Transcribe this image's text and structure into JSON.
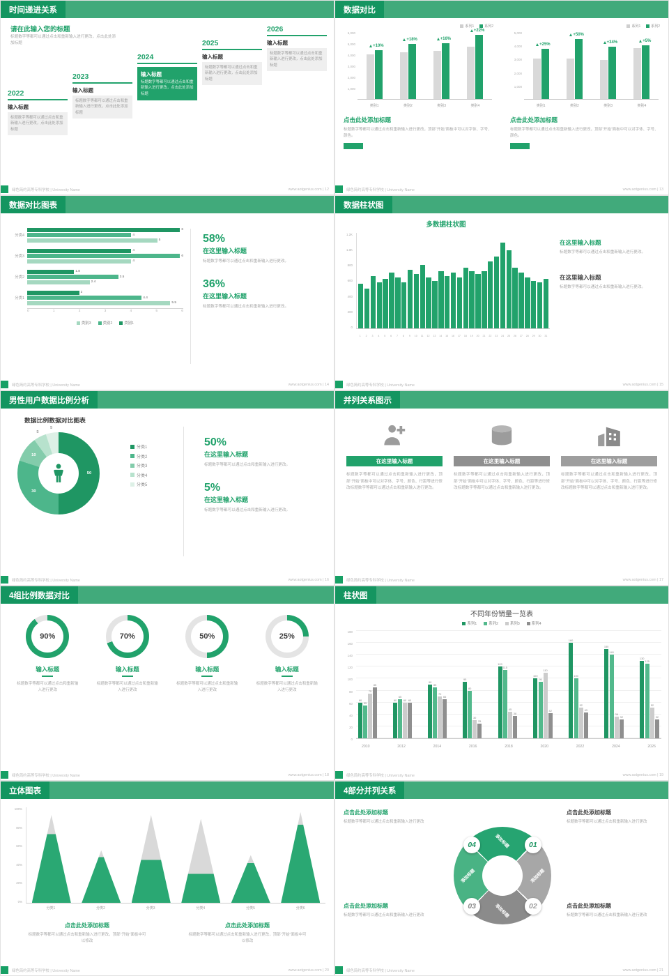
{
  "meta": {
    "accent_color": "#21a26b",
    "footer_left": "绿色简约高等专科学校 | University Name"
  },
  "slides": {
    "s12": {
      "title": "时间递进关系",
      "footer_right": "www.aotgenius.com | 12",
      "heading": "请在此输入您的标题",
      "subheading": "标题数字等都可以通过点击和重新输入进行更改，点击此处添加标题",
      "items": [
        {
          "year": "2022",
          "label": "输入标题",
          "text": "标题数字等都可以通过点击和重新输入进行更改，点击此处添加标题",
          "highlight": false
        },
        {
          "year": "2023",
          "label": "输入标题",
          "text": "标题数字等都可以通过点击和重新输入进行更改，点击此处添加标题",
          "highlight": false
        },
        {
          "year": "2024",
          "label": "输入标题",
          "text": "标题数字等都可以通过点击和重新输入进行更改，点击此处添加标题",
          "highlight": true
        },
        {
          "year": "2025",
          "label": "输入标题",
          "text": "标题数字等都可以通过点击和重新输入进行更改，点击此处添加标题",
          "highlight": false
        },
        {
          "year": "2026",
          "label": "输入标题",
          "text": "标题数字等都可以通过点击和重新输入进行更改，点击此处添加标题",
          "highlight": false
        }
      ]
    },
    "s13": {
      "title": "数据对比",
      "footer_right": "www.aotgenius.com | 13",
      "charts": [
        {
          "legend": [
            "系列1",
            "系列2"
          ],
          "yticks": [
            "6,000",
            "5,000",
            "4,000",
            "3,000",
            "2,000",
            "1,000"
          ],
          "ymax": 6000,
          "categories": [
            "类别1",
            "类别2",
            "类别3",
            "类别4"
          ],
          "base": [
            4000,
            4200,
            4300,
            4700
          ],
          "growth": [
            4400,
            4950,
            5000,
            5750
          ],
          "percents": [
            "+10%",
            "+18%",
            "+16%",
            "+22%"
          ],
          "heading": "点击此处添加标题",
          "text": "标题数字等都可以通过点击和重新输入进行更改，顶部“开始”面板中可以对字体、字号、颜色。"
        },
        {
          "legend": [
            "系列1",
            "系列2"
          ],
          "yticks": [
            "5,000",
            "4,000",
            "3,000",
            "2,000",
            "1,000"
          ],
          "ymax": 5000,
          "categories": [
            "类别1",
            "类别2",
            "类别3",
            "类别4"
          ],
          "base": [
            3000,
            3000,
            2900,
            3800
          ],
          "growth": [
            3750,
            4500,
            3900,
            4000
          ],
          "percents": [
            "+25%",
            "+50%",
            "+34%",
            "+5%"
          ],
          "heading": "点击此处添加标题",
          "text": "标题数字等都可以通过点击和重新输入进行更改，顶部“开始”面板中可以对字体、字号、颜色。"
        }
      ]
    },
    "s14": {
      "title": "数据对比图表",
      "footer_right": "www.aotgenius.com | 14",
      "chart": {
        "type": "bar-horizontal",
        "categories": [
          "分类4",
          "分类3",
          "分类2",
          "分类1"
        ],
        "series": [
          {
            "name": "类别1",
            "color": "#1f9663",
            "values": [
              6,
              4,
              1.8,
              2
            ]
          },
          {
            "name": "类别2",
            "color": "#4db68b",
            "values": [
              4,
              6,
              3.5,
              4.4
            ]
          },
          {
            "name": "类别3",
            "color": "#a5d8c0",
            "values": [
              5,
              4,
              2.4,
              5.5
            ]
          }
        ],
        "xticks": [
          "0",
          "1",
          "2",
          "3",
          "4",
          "5",
          "6"
        ],
        "xmax": 6
      },
      "stats": [
        {
          "value": "58%",
          "label": "在这里输入标题",
          "text": "标题数字等都可以通过点击和重新输入进行更改。"
        },
        {
          "value": "36%",
          "label": "在这里输入标题",
          "text": "标题数字等都可以通过点击和重新输入进行更改。"
        }
      ]
    },
    "s15": {
      "title": "数据柱状图",
      "footer_right": "www.aotgenius.com | 15",
      "chart": {
        "type": "bar",
        "title": "多数据柱状图",
        "values": [
          560,
          500,
          660,
          580,
          620,
          700,
          640,
          580,
          740,
          680,
          800,
          640,
          600,
          720,
          660,
          700,
          640,
          760,
          720,
          680,
          720,
          840,
          900,
          1080,
          980,
          760,
          700,
          640,
          600,
          580,
          620
        ],
        "labels": [
          "1",
          "2",
          "3",
          "4",
          "5",
          "6",
          "7",
          "8",
          "9",
          "10",
          "11",
          "12",
          "13",
          "14",
          "15",
          "16",
          "17",
          "18",
          "19",
          "20",
          "21",
          "22",
          "23",
          "24",
          "25",
          "26",
          "27",
          "28",
          "29",
          "30",
          "31"
        ],
        "yticks": [
          "1.2K",
          "1.0K",
          "800",
          "600",
          "400",
          "200",
          "0"
        ],
        "ymax": 1200
      },
      "blocks": [
        {
          "label": "在这里输入标题",
          "text": "标题数字等都可以通过点击和重新输入进行更改。"
        },
        {
          "label": "在这里输入标题",
          "text": "标题数字等都可以通过点击和重新输入进行更改。"
        }
      ]
    },
    "s16": {
      "title": "男性用户数据比例分析",
      "footer_right": "www.aotgenius.com | 16",
      "chart_title": "数据比例数据对比图表",
      "donut": {
        "type": "pie",
        "segments": [
          {
            "label": "分类1",
            "value": 50,
            "color": "#1f9663"
          },
          {
            "label": "分类2",
            "value": 30,
            "color": "#4db68b"
          },
          {
            "label": "分类3",
            "value": 10,
            "color": "#83ccab"
          },
          {
            "label": "分类4",
            "value": 5,
            "color": "#b7e2cd"
          },
          {
            "label": "分类5",
            "value": 5,
            "color": "#ddf0e6"
          }
        ]
      },
      "stats": [
        {
          "value": "50%",
          "label": "在这里输入标题",
          "text": "标题数字等都可以通过点击和重新输入进行更改。"
        },
        {
          "value": "5%",
          "label": "在这里输入标题",
          "text": "标题数字等都可以通过点击和重新输入进行更改。"
        }
      ]
    },
    "s17": {
      "title": "并列关系图示",
      "footer_right": "www.aotgenius.com | 17",
      "cards": [
        {
          "icon": "nurse",
          "label": "在这里输入标题",
          "style": "green",
          "text": "标题数字等都可以通过点击和重新输入进行更改，顶部“开始”面板中可以对字体、字号、颜色、行距等进行修改标题数字等都可以通过点击和重新输入进行更改。"
        },
        {
          "icon": "database",
          "label": "在这里输入标题",
          "style": "gray",
          "text": "标题数字等都可以通过点击和重新输入进行更改，顶部“开始”面板中可以对字体、字号、颜色、行距等进行修改标题数字等都可以通过点击和重新输入进行更改。"
        },
        {
          "icon": "building",
          "label": "在这里输入标题",
          "style": "gray2",
          "text": "标题数字等都可以通过点击和重新输入进行更改，顶部“开始”面板中可以对字体、字号、颜色、行距等进行修改标题数字等都可以通过点击和重新输入进行更改。"
        }
      ]
    },
    "s18": {
      "title": "4组比例数据对比",
      "footer_right": "www.aotgenius.com | 18",
      "rings": [
        {
          "percent": 90,
          "display": "90%",
          "label": "输入标题",
          "text": "标题数字等都可以通过点击和重新输入进行更改"
        },
        {
          "percent": 70,
          "display": "70%",
          "label": "输入标题",
          "text": "标题数字等都可以通过点击和重新输入进行更改"
        },
        {
          "percent": 50,
          "display": "50%",
          "label": "输入标题",
          "text": "标题数字等都可以通过点击和重新输入进行更改"
        },
        {
          "percent": 25,
          "display": "25%",
          "label": "输入标题",
          "text": "标题数字等都可以通过点击和重新输入进行更改"
        }
      ]
    },
    "s19": {
      "title": "柱状图",
      "footer_right": "www.aotgenius.com | 19",
      "chart": {
        "type": "bar",
        "title": "不同年份销量一览表",
        "categories": [
          "2010",
          "2012",
          "2014",
          "2016",
          "2018",
          "2020",
          "2022",
          "2024",
          "2026"
        ],
        "series": [
          {
            "name": "系列1",
            "color": "#1f9663",
            "values": [
              60,
              60,
              90,
              95,
              120,
              100,
              160,
              150,
              130
            ]
          },
          {
            "name": "系列2",
            "color": "#52b98c",
            "values": [
              55,
              65,
              85,
              80,
              115,
              95,
              100,
              140,
              125
            ]
          },
          {
            "name": "系列3",
            "color": "#cccccc",
            "values": [
              75,
              60,
              70,
              30,
              45,
              110,
              52,
              36,
              52
            ]
          },
          {
            "name": "系列4",
            "color": "#8f8f8f",
            "values": [
              85,
              60,
              65,
              25,
              38,
              42,
              43,
              32,
              32
            ]
          }
        ],
        "yticks": [
          180,
          160,
          140,
          120,
          100,
          80,
          60,
          40,
          20,
          0
        ],
        "ymax": 180
      }
    },
    "s20": {
      "title": "立体图表",
      "footer_right": "www.aotgenius.com | 20",
      "chart": {
        "type": "cone",
        "categories": [
          "分类1",
          "分类2",
          "分类3",
          "分类4",
          "分类5",
          "分类6"
        ],
        "cones": [
          {
            "total": 92,
            "green": 72
          },
          {
            "total": 55,
            "green": 48
          },
          {
            "total": 92,
            "green": 45
          },
          {
            "total": 88,
            "green": 30
          },
          {
            "total": 50,
            "green": 42
          },
          {
            "total": 95,
            "green": 82
          }
        ],
        "yticks": [
          "100%",
          "80%",
          "60%",
          "40%",
          "20%",
          "0%"
        ]
      },
      "blocks": [
        {
          "heading": "点击此处添加标题",
          "text": "标题数字等都可以通过点击和重新输入进行更改，顶部“开始”面板中可以修改"
        },
        {
          "heading": "点击此处添加标题",
          "text": "标题数字等都可以通过点击和重新输入进行更改，顶部“开始”面板中可以修改"
        }
      ]
    },
    "s21": {
      "title": "4部分并列关系",
      "footer_right": "www.aotgenius.com | 21",
      "segments": [
        {
          "label": "添加标题",
          "color": "#26a471"
        },
        {
          "label": "添加标题",
          "color": "#a7a7a7"
        },
        {
          "label": "添加标题",
          "color": "#8b8b8b"
        },
        {
          "label": "添加标题",
          "color": "#49b384"
        }
      ],
      "badges": [
        {
          "num": "01",
          "color": "#1f9663"
        },
        {
          "num": "02",
          "color": "#a0a0a0"
        },
        {
          "num": "03",
          "color": "#8b8b8b"
        },
        {
          "num": "04",
          "color": "#1f9663"
        }
      ],
      "blocks": [
        {
          "heading": "点击此处添加标题",
          "text": "标题数字等都可以通过点击和重新输入进行更改"
        },
        {
          "heading": "点击此处添加标题",
          "text": "标题数字等都可以通过点击和重新输入进行更改"
        },
        {
          "heading": "点击此处添加标题",
          "text": "标题数字等都可以通过点击和重新输入进行更改"
        },
        {
          "heading": "点击此处添加标题",
          "text": "标题数字等都可以通过点击和重新输入进行更改"
        }
      ]
    }
  }
}
